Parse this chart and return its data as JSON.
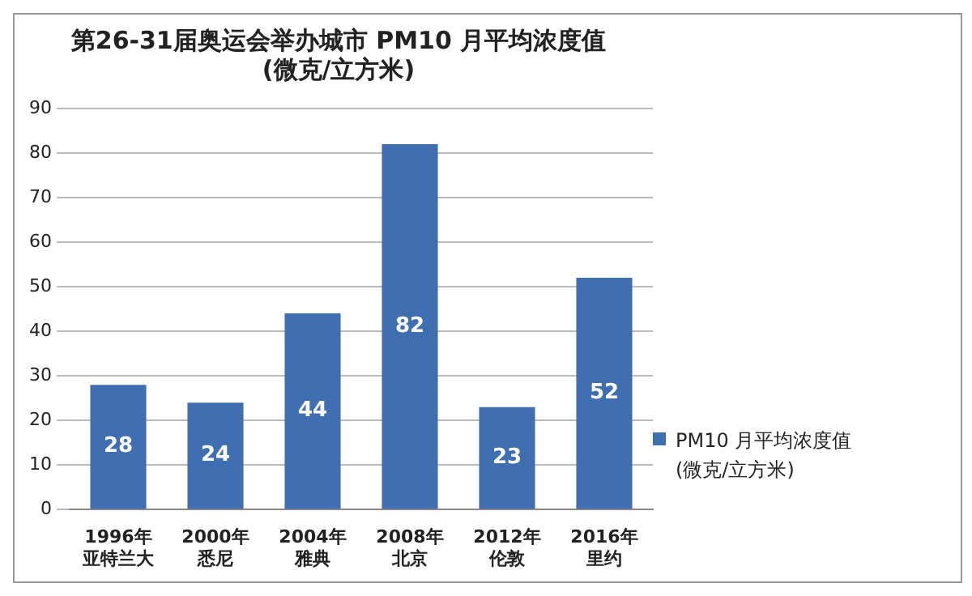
{
  "chart_data": {
    "type": "bar",
    "title": "第26-31届奥运会举办城市 PM10 月平均浓度值\n(微克/立方米)",
    "categories": [
      "1996年亚特兰大",
      "2000年悉尼",
      "2004年雅典",
      "2008年北京",
      "2012年伦敦",
      "2016年里约"
    ],
    "series": [
      {
        "name": "PM10 月平均浓度值\n(微克/立方米)",
        "color": "#3f6fb0",
        "values": [
          28,
          24,
          44,
          82,
          23,
          52
        ]
      }
    ],
    "ylim": [
      0,
      90
    ],
    "yticks": [
      0,
      10,
      20,
      30,
      40,
      50,
      60,
      70,
      80,
      90
    ],
    "grid": "y",
    "legend": "right",
    "data_labels": true
  }
}
